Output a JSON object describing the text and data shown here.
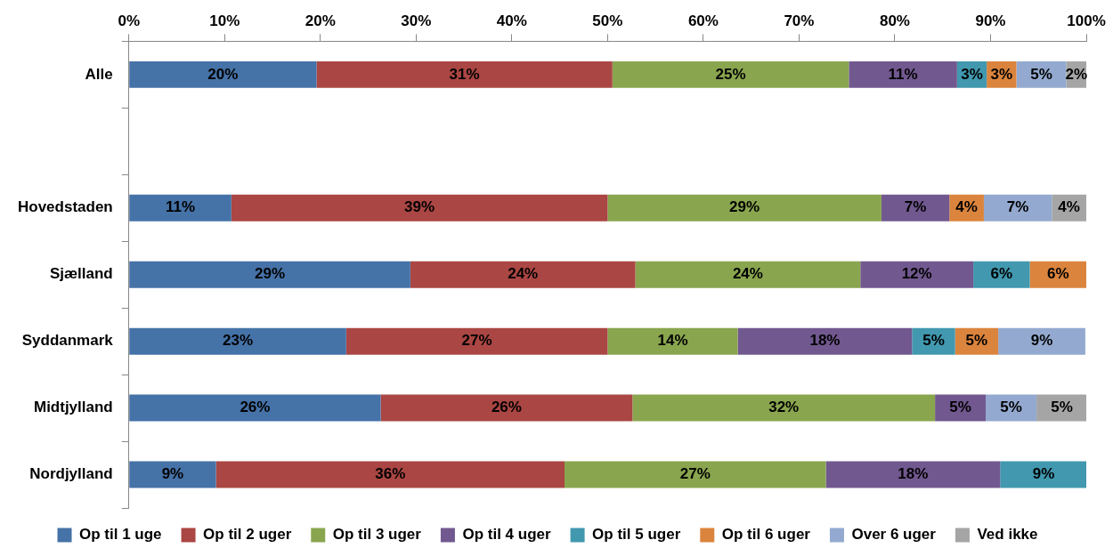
{
  "chart_data": {
    "type": "bar",
    "orientation": "horizontal",
    "stacked": true,
    "legend": "bottom",
    "categories": [
      "Alle",
      null,
      "Hovedstaden",
      "Sjælland",
      "Syddanmark",
      "Midtjylland",
      "Nordjylland"
    ],
    "xlim": [
      0,
      100
    ],
    "xticks": [
      {
        "value": 0,
        "label": "0%"
      },
      {
        "value": 10,
        "label": "10%"
      },
      {
        "value": 20,
        "label": "20%"
      },
      {
        "value": 30,
        "label": "30%"
      },
      {
        "value": 40,
        "label": "40%"
      },
      {
        "value": 50,
        "label": "50%"
      },
      {
        "value": 60,
        "label": "60%"
      },
      {
        "value": 70,
        "label": "70%"
      },
      {
        "value": 80,
        "label": "80%"
      },
      {
        "value": 90,
        "label": "90%"
      },
      {
        "value": 100,
        "label": "100%"
      }
    ],
    "series": [
      {
        "name": "Op til 1 uge",
        "color": "#4572a7",
        "values": [
          19.6,
          null,
          10.7,
          29.4,
          22.7,
          26.3,
          9.1
        ],
        "value_labels": [
          "20%",
          null,
          "11%",
          "29%",
          "23%",
          "26%",
          "9%"
        ]
      },
      {
        "name": "Op til 2 uger",
        "color": "#aa4643",
        "values": [
          30.9,
          null,
          39.3,
          23.5,
          27.3,
          26.3,
          36.4
        ],
        "value_labels": [
          "31%",
          null,
          "39%",
          "24%",
          "27%",
          "26%",
          "36%"
        ]
      },
      {
        "name": "Op til 3 uger",
        "color": "#89a54e",
        "values": [
          24.7,
          null,
          28.6,
          23.5,
          13.6,
          31.6,
          27.3
        ],
        "value_labels": [
          "25%",
          null,
          "29%",
          "24%",
          "14%",
          "32%",
          "27%"
        ]
      },
      {
        "name": "Op til 4 uger",
        "color": "#71588f",
        "values": [
          11.3,
          null,
          7.1,
          11.8,
          18.2,
          5.3,
          18.2
        ],
        "value_labels": [
          "11%",
          null,
          "7%",
          "12%",
          "18%",
          "5%",
          "18%"
        ]
      },
      {
        "name": "Op til 5 uger",
        "color": "#4198af",
        "values": [
          3.1,
          null,
          null,
          5.9,
          4.5,
          null,
          9.1
        ],
        "value_labels": [
          "3%",
          null,
          null,
          "6%",
          "5%",
          null,
          "9%"
        ]
      },
      {
        "name": "Op til 6 uger",
        "color": "#db843d",
        "values": [
          3.1,
          null,
          3.6,
          5.9,
          4.5,
          null,
          null
        ],
        "value_labels": [
          "3%",
          null,
          "4%",
          "6%",
          "5%",
          null,
          null
        ]
      },
      {
        "name": "Over 6 uger",
        "color": "#93a9cf",
        "values": [
          5.2,
          null,
          7.1,
          null,
          9.1,
          5.3,
          null
        ],
        "value_labels": [
          "5%",
          null,
          "7%",
          null,
          "9%",
          "5%",
          null
        ]
      },
      {
        "name": "Ved ikke",
        "color": "#a5a5a5",
        "values": [
          2.1,
          null,
          3.6,
          null,
          null,
          5.3,
          null
        ],
        "value_labels": [
          "2%",
          null,
          "4%",
          null,
          null,
          "5%",
          null
        ]
      }
    ]
  }
}
